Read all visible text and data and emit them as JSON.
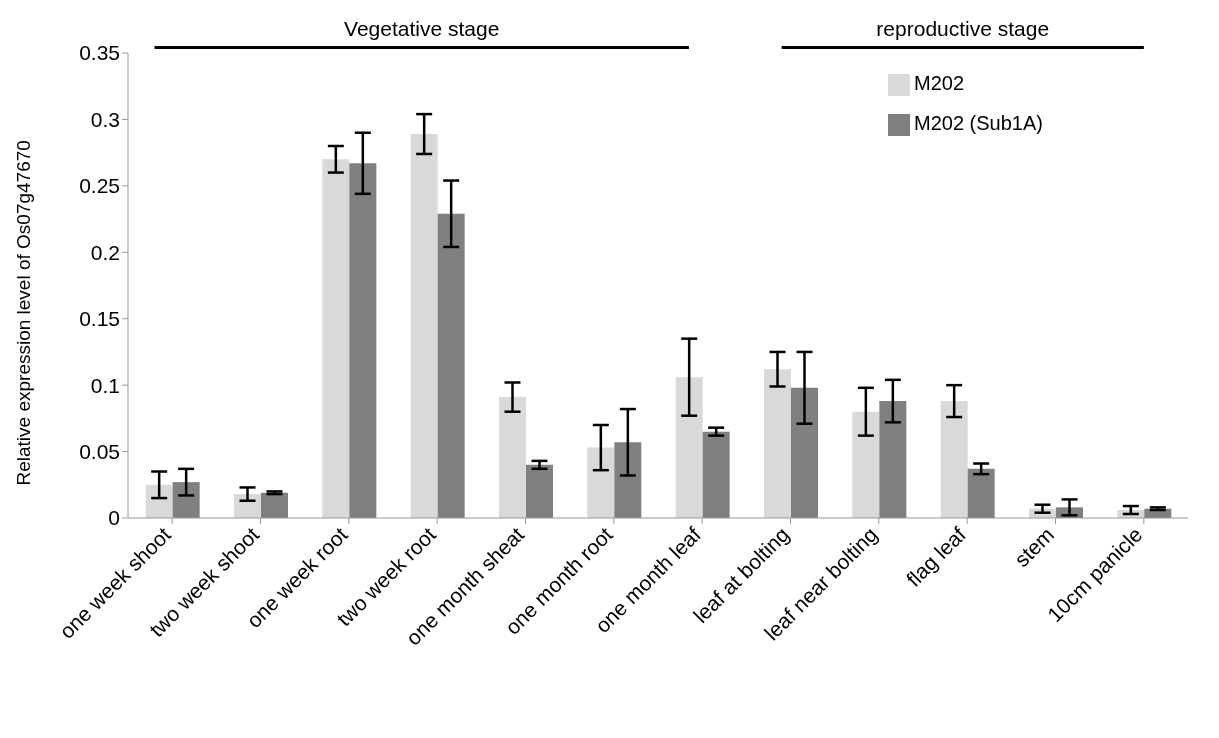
{
  "chart_data": {
    "type": "bar",
    "ylabel": "Relative expression level of Os07g47670",
    "categories": [
      "one week shoot",
      "two week shoot",
      "one week root",
      "two week root",
      "one month sheat",
      "one month root",
      "one month leaf",
      "leaf at bolting",
      "leaf near bolting",
      "flag leaf",
      "stem",
      "10cm panicle"
    ],
    "series": [
      {
        "name": "M202",
        "color": "#d9d9d9",
        "values": [
          0.025,
          0.018,
          0.27,
          0.289,
          0.091,
          0.053,
          0.106,
          0.112,
          0.08,
          0.088,
          0.007,
          0.006
        ],
        "errors": [
          0.01,
          0.005,
          0.01,
          0.015,
          0.011,
          0.017,
          0.029,
          0.013,
          0.018,
          0.012,
          0.003,
          0.003
        ]
      },
      {
        "name": "M202 (Sub1A)",
        "color": "#808080",
        "values": [
          0.027,
          0.019,
          0.267,
          0.229,
          0.04,
          0.057,
          0.065,
          0.098,
          0.088,
          0.037,
          0.008,
          0.007
        ],
        "errors": [
          0.01,
          0.001,
          0.023,
          0.025,
          0.003,
          0.025,
          0.003,
          0.027,
          0.016,
          0.004,
          0.006,
          0.001
        ]
      }
    ],
    "ylim": [
      0,
      0.35
    ],
    "yticks": [
      0,
      0.05,
      0.1,
      0.15,
      0.2,
      0.25,
      0.3,
      0.35
    ],
    "grid": false,
    "legend": "top right",
    "annotations": [
      "Vegetative stage",
      "reproductive stage"
    ]
  }
}
